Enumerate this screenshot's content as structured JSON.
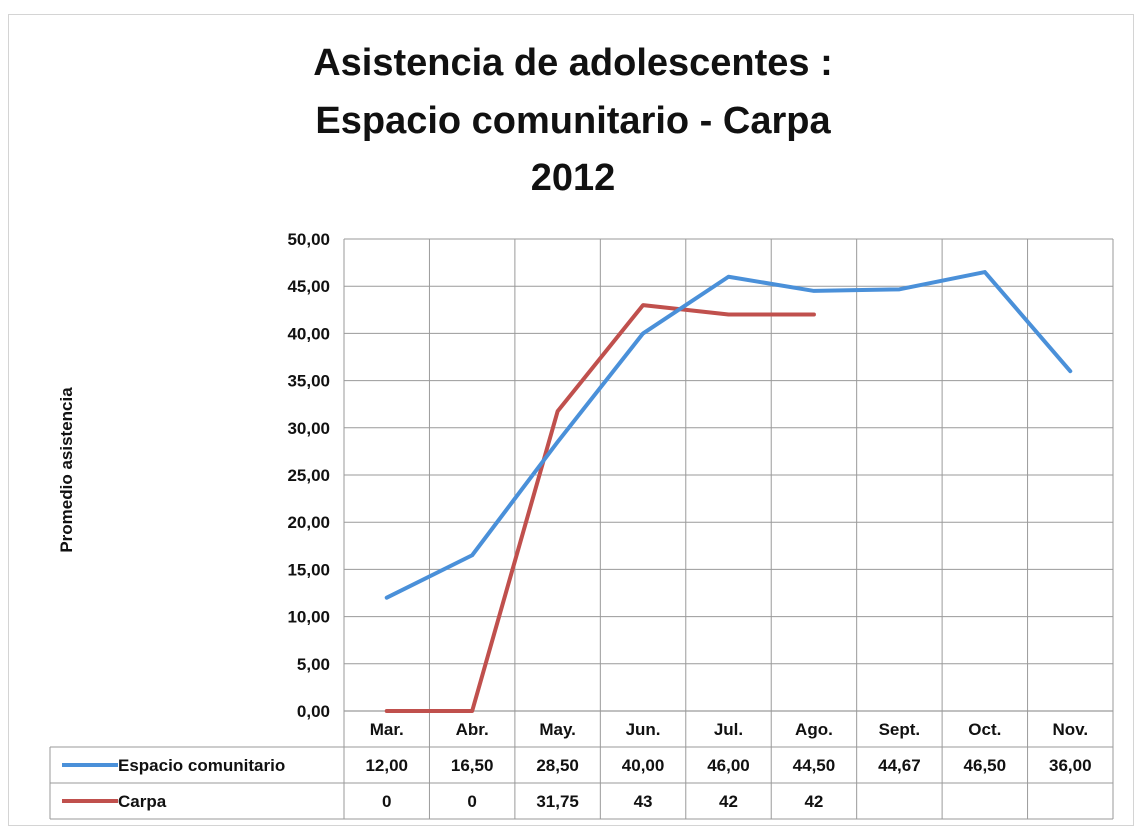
{
  "chart_data": {
    "type": "line",
    "title_lines": [
      "Asistencia de adolescentes :",
      "Espacio comunitario - Carpa",
      "2012"
    ],
    "ylabel": "Promedio asistencia",
    "xlabel": "",
    "categories": [
      "Mar.",
      "Abr.",
      "May.",
      "Jun.",
      "Jul.",
      "Ago.",
      "Sept.",
      "Oct.",
      "Nov."
    ],
    "ylim": [
      0,
      50
    ],
    "yticks": [
      0,
      5,
      10,
      15,
      20,
      25,
      30,
      35,
      40,
      45,
      50
    ],
    "ytick_labels": [
      "0,00",
      "5,00",
      "10,00",
      "15,00",
      "20,00",
      "25,00",
      "30,00",
      "35,00",
      "40,00",
      "45,00",
      "50,00"
    ],
    "grid": true,
    "legend": "data-table",
    "series": [
      {
        "name": "Espacio comunitario",
        "color": "#4a90d9",
        "values": [
          12.0,
          16.5,
          28.5,
          40.0,
          46.0,
          44.5,
          44.67,
          46.5,
          36.0
        ],
        "table_labels": [
          "12,00",
          "16,50",
          "28,50",
          "40,00",
          "46,00",
          "44,50",
          "44,67",
          "46,50",
          "36,00"
        ]
      },
      {
        "name": "Carpa",
        "color": "#c0504d",
        "values": [
          0,
          0,
          31.75,
          43,
          42,
          42,
          null,
          null,
          null
        ],
        "table_labels": [
          "0",
          "0",
          "31,75",
          "43",
          "42",
          "42",
          "",
          "",
          ""
        ]
      }
    ]
  }
}
